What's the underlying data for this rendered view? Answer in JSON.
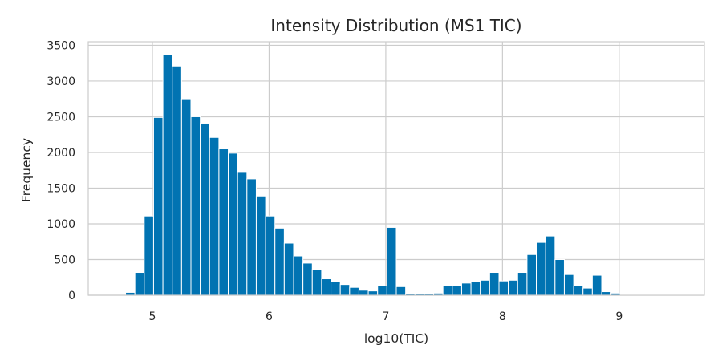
{
  "chart_data": {
    "type": "bar",
    "title": "Intensity Distribution (MS1 TIC)",
    "xlabel": "log10(TIC)",
    "ylabel": "Frequency",
    "xlim": [
      4.45,
      9.73
    ],
    "ylim": [
      0,
      3550
    ],
    "xticks": [
      5,
      6,
      7,
      8,
      9
    ],
    "yticks": [
      0,
      500,
      1000,
      1500,
      2000,
      2500,
      3000,
      3500
    ],
    "grid": true,
    "bar_color": "#0173b2",
    "grid_color": "#cccccc",
    "bin_start": 4.45,
    "bin_width": 0.08,
    "values": [
      0,
      0,
      0,
      0,
      40,
      320,
      1110,
      2490,
      3370,
      3210,
      2740,
      2500,
      2410,
      2210,
      2050,
      1990,
      1720,
      1630,
      1390,
      1110,
      940,
      730,
      550,
      450,
      360,
      230,
      190,
      150,
      110,
      70,
      60,
      130,
      950,
      120,
      20,
      20,
      20,
      30,
      130,
      140,
      170,
      190,
      210,
      320,
      200,
      210,
      320,
      570,
      740,
      830,
      500,
      290,
      130,
      100,
      280,
      50,
      30,
      10,
      10,
      10,
      10,
      10,
      10,
      10,
      10,
      10
    ]
  }
}
